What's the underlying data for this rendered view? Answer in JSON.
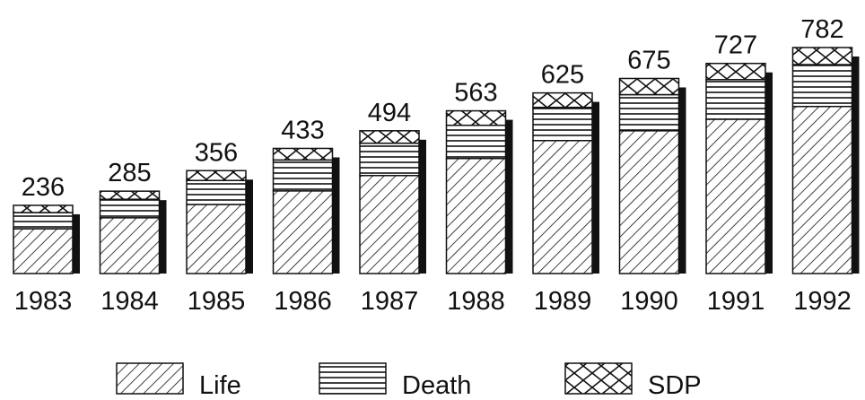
{
  "chart_data": {
    "type": "stacked-bar",
    "categories": [
      "1983",
      "1984",
      "1985",
      "1986",
      "1987",
      "1988",
      "1989",
      "1990",
      "1991",
      "1992"
    ],
    "series": [
      {
        "name": "Life",
        "pattern": "diagonal",
        "color": "#111111",
        "values": [
          155,
          193,
          239,
          286,
          339,
          398,
          460,
          494,
          534,
          578
        ]
      },
      {
        "name": "Death",
        "pattern": "horizontal",
        "color": "#111111",
        "values": [
          56,
          64,
          83,
          107,
          112,
          115,
          115,
          125,
          137,
          145
        ]
      },
      {
        "name": "SDP",
        "pattern": "crosshatch",
        "color": "#111111",
        "values": [
          25,
          28,
          34,
          40,
          43,
          50,
          50,
          56,
          56,
          59
        ]
      }
    ],
    "totals": [
      236,
      285,
      356,
      433,
      494,
      563,
      625,
      675,
      727,
      782
    ],
    "legend": "bottom"
  }
}
